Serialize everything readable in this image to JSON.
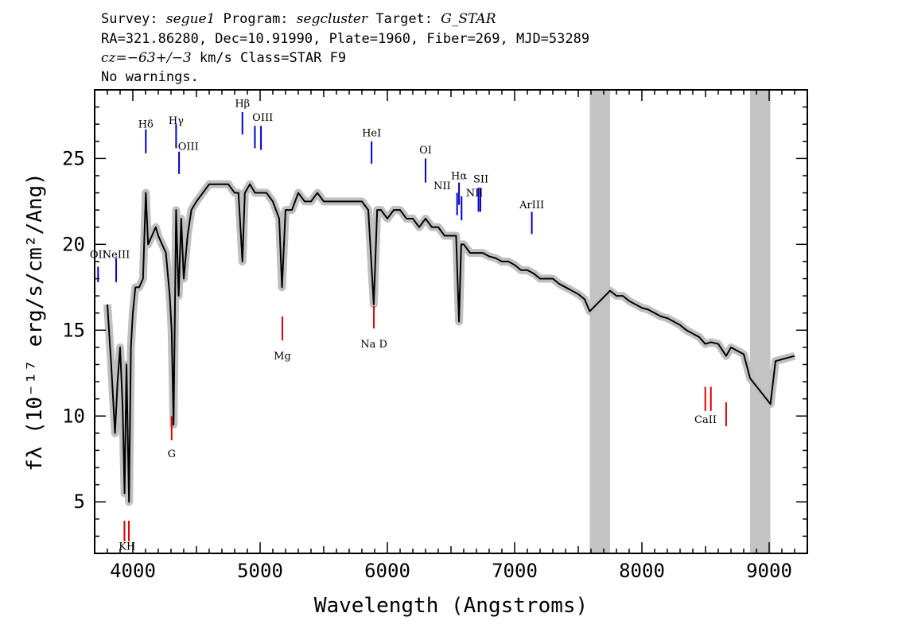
{
  "header": {
    "line1": {
      "survey_label": "Survey:",
      "survey": "segue1",
      "program_label": "Program:",
      "program": "segcluster",
      "target_label": "Target:",
      "target": "G_STAR"
    },
    "line2": "RA=321.86280, Dec=10.91990, Plate=1960, Fiber=269, MJD=53289",
    "line3": {
      "cz_label": "cz",
      "cz_value": "=−63+/−3",
      "rest": " km/s Class=STAR F9"
    },
    "line4": "No warnings."
  },
  "chart_data": {
    "type": "line",
    "xlabel": "Wavelength (Angstroms)",
    "ylabel": "fλ (10⁻¹⁷ erg/s/cm²/Ang)",
    "xlim": [
      3700,
      9300
    ],
    "ylim": [
      2,
      29
    ],
    "x_ticks": [
      4000,
      5000,
      6000,
      7000,
      8000,
      9000
    ],
    "y_ticks": [
      5,
      10,
      15,
      20,
      25
    ],
    "grid": false,
    "colors": {
      "spectrum": "#000000",
      "error_band": "#c0c0c0",
      "masked_region": "#c4c4c4",
      "emission_marker": "#0000cc",
      "absorption_marker": "#dd0000"
    },
    "masked_regions": [
      [
        7590,
        7750
      ],
      [
        8850,
        9010
      ]
    ],
    "series": [
      {
        "x": [
          3800,
          3830,
          3860,
          3880,
          3900,
          3920,
          3935,
          3950,
          3970,
          3985,
          4000,
          4020,
          4050,
          4080,
          4102,
          4120,
          4150,
          4180,
          4200,
          4230,
          4260,
          4290,
          4305,
          4320,
          4340,
          4360,
          4380,
          4400,
          4430,
          4460,
          4500,
          4550,
          4600,
          4650,
          4700,
          4750,
          4800,
          4830,
          4861,
          4880,
          4920,
          4960,
          5000,
          5050,
          5100,
          5150,
          5172,
          5200,
          5250,
          5300,
          5350,
          5400,
          5450,
          5500,
          5550,
          5577,
          5600,
          5650,
          5700,
          5750,
          5800,
          5850,
          5893,
          5920,
          5950,
          6000,
          6050,
          6100,
          6150,
          6200,
          6250,
          6300,
          6350,
          6400,
          6450,
          6500,
          6540,
          6563,
          6580,
          6600,
          6650,
          6700,
          6750,
          6800,
          6850,
          6900,
          6950,
          7000,
          7050,
          7100,
          7150,
          7200,
          7250,
          7300,
          7350,
          7400,
          7450,
          7500,
          7550,
          7590,
          7750,
          7800,
          7850,
          7900,
          7950,
          8000,
          8050,
          8100,
          8150,
          8200,
          8250,
          8300,
          8350,
          8400,
          8450,
          8498,
          8542,
          8600,
          8662,
          8700,
          8750,
          8800,
          8850,
          9010,
          9050,
          9100,
          9150,
          9200
        ],
        "y": [
          16.5,
          13,
          9,
          12,
          14,
          10.5,
          5.5,
          13,
          5,
          14,
          16,
          17.5,
          17.5,
          18,
          23,
          20,
          20.5,
          21,
          20.5,
          20,
          19.5,
          17,
          15,
          9.5,
          22,
          17,
          21.5,
          18,
          20.5,
          22,
          22.5,
          23,
          23.5,
          23.5,
          23.5,
          23.5,
          23,
          23,
          19,
          23,
          23.5,
          23,
          23,
          23,
          22.5,
          21.5,
          17.5,
          22,
          22,
          23,
          22.5,
          22.5,
          23,
          22.5,
          22.5,
          22.5,
          22.5,
          22.5,
          22.5,
          22.5,
          22.5,
          22,
          16.5,
          22,
          22,
          21.5,
          22,
          22,
          21.5,
          21.5,
          21,
          21.5,
          21,
          21,
          20.5,
          20.5,
          20.5,
          15.5,
          20,
          20,
          19.5,
          19.5,
          19.5,
          19.3,
          19.2,
          19,
          19,
          18.8,
          18.5,
          18.5,
          18.3,
          18,
          18,
          18,
          17.7,
          17.5,
          17.3,
          17.1,
          16.8,
          16.1,
          17.3,
          17,
          17,
          16.7,
          16.5,
          16.3,
          16.2,
          16,
          15.8,
          15.7,
          15.5,
          15.3,
          15,
          14.8,
          14.6,
          14.2,
          14.3,
          14.2,
          13.5,
          14,
          13.8,
          13.6,
          12.2,
          10.7,
          13.2,
          13.3,
          13.4,
          13.5
        ]
      }
    ],
    "line_markers": [
      {
        "label": "OII",
        "x": 3727,
        "y1": 17.8,
        "y2": 18.7,
        "color": "#0000cc"
      },
      {
        "label": "NeIII",
        "x": 3869,
        "y1": 17.8,
        "y2": 19.2,
        "color": "#0000cc"
      },
      {
        "label": "Hδ",
        "x": 4102,
        "y1": 25.3,
        "y2": 26.7,
        "color": "#0000cc"
      },
      {
        "label": "Hγ",
        "x": 4340,
        "y1": 25.6,
        "y2": 27.0,
        "color": "#0000cc"
      },
      {
        "label": "OIII",
        "x": 4363,
        "y1": 24.1,
        "y2": 25.4,
        "color": "#0000cc"
      },
      {
        "label": "Hβ",
        "x": 4861,
        "y1": 26.4,
        "y2": 27.7,
        "color": "#0000cc"
      },
      {
        "label": "OIII",
        "x": 4959,
        "y1": 25.6,
        "y2": 26.9,
        "color": "#0000cc"
      },
      {
        "label": "OIII",
        "x": 5007,
        "y1": 25.5,
        "y2": 26.9,
        "color": "#0000cc"
      },
      {
        "label": "HeI",
        "x": 5876,
        "y1": 24.7,
        "y2": 26.0,
        "color": "#0000cc"
      },
      {
        "label": "OI",
        "x": 6300,
        "y1": 23.6,
        "y2": 25.0,
        "color": "#0000cc"
      },
      {
        "label": "NII",
        "x": 6548,
        "y1": 21.7,
        "y2": 23.0,
        "color": "#0000cc"
      },
      {
        "label": "Hα",
        "x": 6563,
        "y1": 22.3,
        "y2": 23.6,
        "color": "#0000cc"
      },
      {
        "label": "NII",
        "x": 6583,
        "y1": 21.4,
        "y2": 22.8,
        "color": "#0000cc"
      },
      {
        "label": "SII",
        "x": 6716,
        "y1": 21.9,
        "y2": 23.3,
        "color": "#0000cc"
      },
      {
        "label": "SII",
        "x": 6731,
        "y1": 21.9,
        "y2": 23.3,
        "color": "#0000cc"
      },
      {
        "label": "ArIII",
        "x": 7135,
        "y1": 20.6,
        "y2": 21.9,
        "color": "#0000cc"
      },
      {
        "label": "K",
        "x": 3934,
        "y1": 2.7,
        "y2": 3.9,
        "color": "#dd0000"
      },
      {
        "label": "H",
        "x": 3969,
        "y1": 2.7,
        "y2": 3.9,
        "color": "#dd0000"
      },
      {
        "label": "G",
        "x": 4305,
        "y1": 8.6,
        "y2": 10.0,
        "color": "#dd0000"
      },
      {
        "label": "Mg",
        "x": 5175,
        "y1": 14.4,
        "y2": 15.8,
        "color": "#dd0000"
      },
      {
        "label": "Na",
        "x": 5894,
        "y1": 15.1,
        "y2": 16.4,
        "color": "#dd0000"
      },
      {
        "label": "CaII",
        "x": 8498,
        "y1": 10.3,
        "y2": 11.7,
        "color": "#dd0000"
      },
      {
        "label": "CaII",
        "x": 8542,
        "y1": 10.3,
        "y2": 11.7,
        "color": "#dd0000"
      },
      {
        "label": "CaII",
        "x": 8662,
        "y1": 9.4,
        "y2": 10.8,
        "color": "#dd0000"
      }
    ],
    "line_labels": [
      {
        "text": "OII",
        "x": 3727,
        "y": 19.2
      },
      {
        "text": "NeIII",
        "x": 3869,
        "y": 19.2
      },
      {
        "text": "Hδ",
        "x": 4102,
        "y": 26.8
      },
      {
        "text": "Hγ",
        "x": 4340,
        "y": 27.0
      },
      {
        "text": "OIII",
        "x": 4436,
        "y": 25.5
      },
      {
        "text": "Hβ",
        "x": 4861,
        "y": 28.0
      },
      {
        "text": "OIII",
        "x": 5020,
        "y": 27.2
      },
      {
        "text": "HeI",
        "x": 5876,
        "y": 26.3
      },
      {
        "text": "OI",
        "x": 6300,
        "y": 25.3
      },
      {
        "text": "NII",
        "x": 6430,
        "y": 23.2
      },
      {
        "text": "Hα",
        "x": 6563,
        "y": 23.8
      },
      {
        "text": "SII",
        "x": 6735,
        "y": 23.6
      },
      {
        "text": "NII",
        "x": 6685,
        "y": 22.8
      },
      {
        "text": "ArIII",
        "x": 7135,
        "y": 22.1
      },
      {
        "text": "KH",
        "x": 3955,
        "y": 2.2
      },
      {
        "text": "G",
        "x": 4305,
        "y": 7.6
      },
      {
        "text": "Mg",
        "x": 5175,
        "y": 13.3
      },
      {
        "text": "Na D",
        "x": 5894,
        "y": 14.0
      },
      {
        "text": "CaII",
        "x": 8500,
        "y": 9.6
      }
    ]
  }
}
